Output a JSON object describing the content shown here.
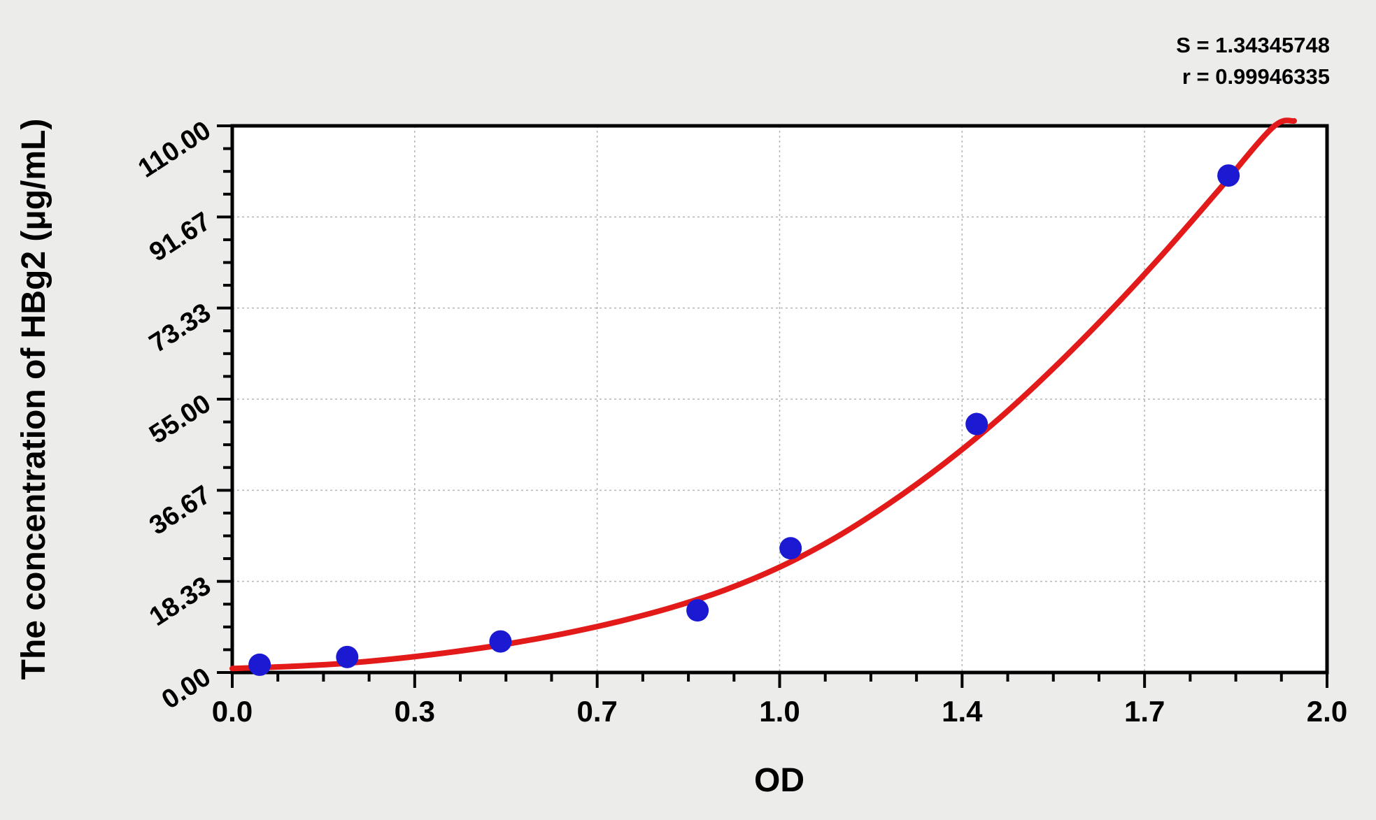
{
  "page": {
    "background": "#ececea"
  },
  "annotation": {
    "s_line": "S = 1.34345748",
    "r_line": "r = 0.99946335"
  },
  "chart_data": {
    "type": "scatter",
    "title": "",
    "xlabel": "OD",
    "ylabel": "The concentration of HBg2 (μg/mL)",
    "xlim": [
      0.0,
      2.0
    ],
    "ylim": [
      0.0,
      110.0
    ],
    "x_major_ticks": [
      0,
      0.33333,
      0.66667,
      1.0,
      1.33333,
      1.66667,
      2.0
    ],
    "x_tick_labels": [
      "0.0",
      "0.3",
      "0.7",
      "1.0",
      "1.4",
      "1.7",
      "2.0"
    ],
    "y_major_ticks": [
      0,
      18.33333,
      36.66667,
      55.0,
      73.33333,
      91.66667,
      110.0
    ],
    "y_tick_labels": [
      "0.00",
      "18.33",
      "36.67",
      "55.00",
      "73.33",
      "91.67",
      "110.00"
    ],
    "minor_tick_divisions": 4,
    "grid": {
      "style": "dashed",
      "color": "#b5b5b5",
      "at": "major-ticks"
    },
    "legend": null,
    "stats": {
      "S": "1.34345748",
      "r": "0.99946335"
    },
    "series": [
      {
        "name": "standard-points",
        "marker": "circle",
        "color": "#1c19d3",
        "points": [
          {
            "od": 0.05,
            "concentration": 1.56
          },
          {
            "od": 0.21,
            "concentration": 3.12
          },
          {
            "od": 0.49,
            "concentration": 6.25
          },
          {
            "od": 0.85,
            "concentration": 12.5
          },
          {
            "od": 1.02,
            "concentration": 25.0
          },
          {
            "od": 1.36,
            "concentration": 50.0
          },
          {
            "od": 1.82,
            "concentration": 100.0
          }
        ]
      }
    ],
    "fit_curve": {
      "color": "#e31a1a",
      "samples": [
        [
          0.0,
          0.8
        ],
        [
          0.1,
          1.2
        ],
        [
          0.2,
          1.8
        ],
        [
          0.3,
          2.8
        ],
        [
          0.4,
          4.1
        ],
        [
          0.5,
          5.7
        ],
        [
          0.6,
          7.7
        ],
        [
          0.7,
          10.1
        ],
        [
          0.8,
          13.0
        ],
        [
          0.9,
          16.6
        ],
        [
          1.0,
          21.2
        ],
        [
          1.1,
          27.0
        ],
        [
          1.2,
          34.0
        ],
        [
          1.3,
          42.0
        ],
        [
          1.4,
          51.0
        ],
        [
          1.5,
          61.2
        ],
        [
          1.6,
          72.3
        ],
        [
          1.7,
          84.2
        ],
        [
          1.8,
          96.8
        ],
        [
          1.9,
          109.6
        ],
        [
          1.94,
          111.0
        ]
      ]
    }
  }
}
